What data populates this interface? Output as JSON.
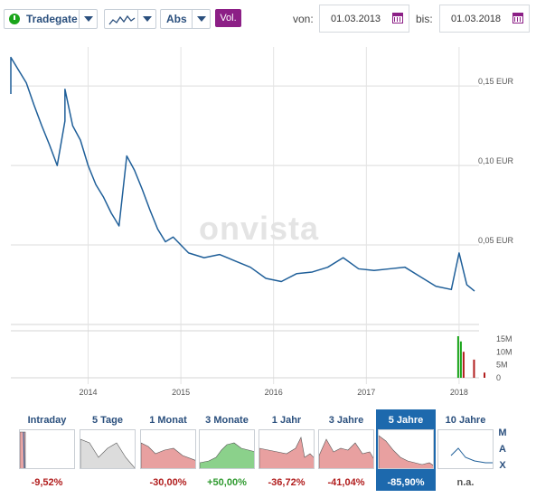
{
  "toolbar": {
    "exchange": "Tradegate",
    "scale": "Abs",
    "volume_label": "Vol.",
    "from_label": "von:",
    "from_date": "01.03.2013",
    "to_label": "bis:",
    "to_date": "01.03.2018"
  },
  "watermark": "onvista",
  "colors": {
    "line": "#1f5f99",
    "accent": "#8c1f86",
    "active_tab": "#1d69ad",
    "neg": "#b11d1d",
    "pos": "#2f9a2f"
  },
  "chart_data": {
    "type": "line",
    "x_ticks": [
      "2014",
      "2015",
      "2016",
      "2017",
      "2018"
    ],
    "y_ticks": [
      "0,15 EUR",
      "0,10 EUR",
      "0,05 EUR"
    ],
    "y_tick_values": [
      0.15,
      0.1,
      0.05
    ],
    "ylim": [
      0.0,
      0.17
    ],
    "grid": true,
    "series": [
      {
        "values": [
          {
            "x": "2013-03",
            "y": 0.145
          },
          {
            "x": "2013-03",
            "y": 0.168
          },
          {
            "x": "2013-04",
            "y": 0.16
          },
          {
            "x": "2013-05",
            "y": 0.152
          },
          {
            "x": "2013-06",
            "y": 0.138
          },
          {
            "x": "2013-07",
            "y": 0.125
          },
          {
            "x": "2013-08",
            "y": 0.113
          },
          {
            "x": "2013-09",
            "y": 0.1
          },
          {
            "x": "2013-10",
            "y": 0.128
          },
          {
            "x": "2013-10",
            "y": 0.148
          },
          {
            "x": "2013-11",
            "y": 0.125
          },
          {
            "x": "2013-12",
            "y": 0.116
          },
          {
            "x": "2014-01",
            "y": 0.1
          },
          {
            "x": "2014-02",
            "y": 0.088
          },
          {
            "x": "2014-03",
            "y": 0.08
          },
          {
            "x": "2014-04",
            "y": 0.07
          },
          {
            "x": "2014-05",
            "y": 0.062
          },
          {
            "x": "2014-06",
            "y": 0.106
          },
          {
            "x": "2014-07",
            "y": 0.097
          },
          {
            "x": "2014-08",
            "y": 0.085
          },
          {
            "x": "2014-09",
            "y": 0.072
          },
          {
            "x": "2014-10",
            "y": 0.06
          },
          {
            "x": "2014-11",
            "y": 0.052
          },
          {
            "x": "2014-12",
            "y": 0.055
          },
          {
            "x": "2015-02",
            "y": 0.045
          },
          {
            "x": "2015-04",
            "y": 0.042
          },
          {
            "x": "2015-06",
            "y": 0.044
          },
          {
            "x": "2015-08",
            "y": 0.04
          },
          {
            "x": "2015-10",
            "y": 0.036
          },
          {
            "x": "2015-12",
            "y": 0.029
          },
          {
            "x": "2016-02",
            "y": 0.027
          },
          {
            "x": "2016-04",
            "y": 0.032
          },
          {
            "x": "2016-06",
            "y": 0.033
          },
          {
            "x": "2016-08",
            "y": 0.036
          },
          {
            "x": "2016-10",
            "y": 0.042
          },
          {
            "x": "2016-12",
            "y": 0.035
          },
          {
            "x": "2017-02",
            "y": 0.034
          },
          {
            "x": "2017-04",
            "y": 0.035
          },
          {
            "x": "2017-06",
            "y": 0.036
          },
          {
            "x": "2017-08",
            "y": 0.03
          },
          {
            "x": "2017-10",
            "y": 0.024
          },
          {
            "x": "2017-12",
            "y": 0.022
          },
          {
            "x": "2018-01",
            "y": 0.045
          },
          {
            "x": "2018-02",
            "y": 0.025
          },
          {
            "x": "2018-03",
            "y": 0.021
          }
        ]
      }
    ],
    "volume_ticks": [
      "15M",
      "10M",
      "5M",
      "0"
    ],
    "volume_tick_values": [
      15,
      10,
      5,
      0
    ],
    "volume_bars": [
      {
        "x": "2018-01",
        "value": 16,
        "color": "#1aa51a"
      },
      {
        "x": "2018-01",
        "value": 14,
        "color": "#1aa51a"
      },
      {
        "x": "2018-01",
        "value": 10,
        "color": "#b11d1d"
      },
      {
        "x": "2018-02",
        "value": 7,
        "color": "#b11d1d"
      },
      {
        "x": "2018-03",
        "value": 2,
        "color": "#b11d1d"
      }
    ]
  },
  "periods": [
    {
      "title": "Intraday",
      "value": "-9,52%",
      "tone": "neg"
    },
    {
      "title": "5 Tage",
      "value": "",
      "tone": "na"
    },
    {
      "title": "1 Monat",
      "value": "-30,00%",
      "tone": "neg"
    },
    {
      "title": "3 Monate",
      "value": "+50,00%",
      "tone": "pos"
    },
    {
      "title": "1 Jahr",
      "value": "-36,72%",
      "tone": "neg"
    },
    {
      "title": "3 Jahre",
      "value": "-41,04%",
      "tone": "neg"
    },
    {
      "title": "5 Jahre",
      "value": "-85,90%",
      "tone": "neg"
    },
    {
      "title": "10 Jahre",
      "value": "n.a.",
      "tone": "na"
    }
  ],
  "max_label": [
    "M",
    "A",
    "X"
  ]
}
